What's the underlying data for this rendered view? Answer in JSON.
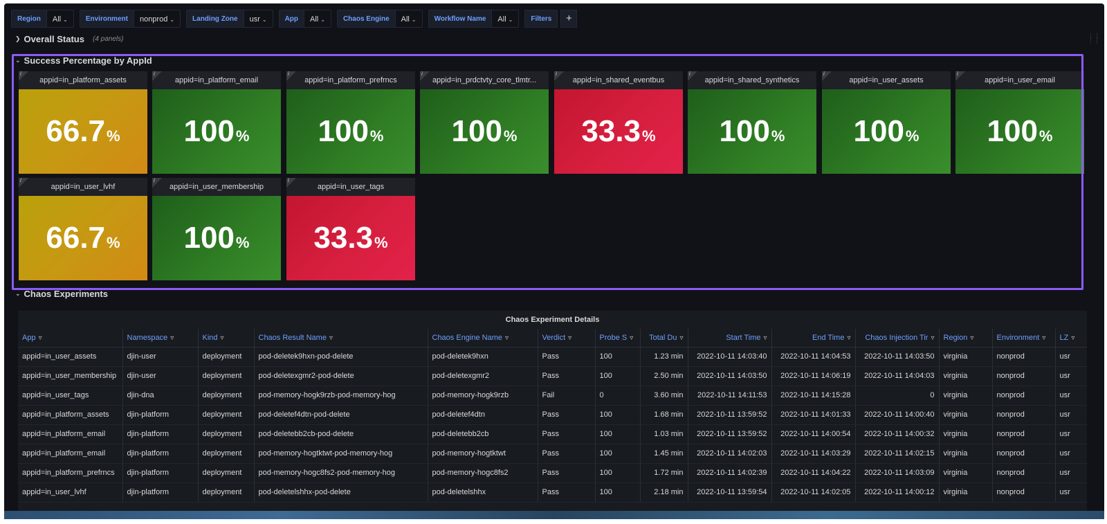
{
  "variables": [
    {
      "label": "Region",
      "value": "All"
    },
    {
      "label": "Environment",
      "value": "nonprod"
    },
    {
      "label": "Landing Zone",
      "value": "usr"
    },
    {
      "label": "App",
      "value": "All"
    },
    {
      "label": "Chaos Engine",
      "value": "All"
    },
    {
      "label": "Workflow Name",
      "value": "All"
    },
    {
      "label": "Filters",
      "value": ""
    }
  ],
  "add_filter_symbol": "+",
  "rows": {
    "overall": {
      "title": "Overall Status",
      "subtitle": "(4 panels)"
    },
    "success": {
      "title": "Success Percentage by AppId"
    },
    "chaos": {
      "title": "Chaos Experiments"
    }
  },
  "stat_panels": [
    {
      "title": "appid=in_platform_assets",
      "value": "66.7",
      "unit": "%",
      "status": "yellow"
    },
    {
      "title": "appid=in_platform_email",
      "value": "100",
      "unit": "%",
      "status": "green"
    },
    {
      "title": "appid=in_platform_prefrncs",
      "value": "100",
      "unit": "%",
      "status": "green"
    },
    {
      "title": "appid=in_prdctvty_core_tlmtr...",
      "value": "100",
      "unit": "%",
      "status": "green"
    },
    {
      "title": "appid=in_shared_eventbus",
      "value": "33.3",
      "unit": "%",
      "status": "red"
    },
    {
      "title": "appid=in_shared_synthetics",
      "value": "100",
      "unit": "%",
      "status": "green"
    },
    {
      "title": "appid=in_user_assets",
      "value": "100",
      "unit": "%",
      "status": "green"
    },
    {
      "title": "appid=in_user_email",
      "value": "100",
      "unit": "%",
      "status": "green"
    },
    {
      "title": "appid=in_user_lvhf",
      "value": "66.7",
      "unit": "%",
      "status": "yellow"
    },
    {
      "title": "appid=in_user_membership",
      "value": "100",
      "unit": "%",
      "status": "green"
    },
    {
      "title": "appid=in_user_tags",
      "value": "33.3",
      "unit": "%",
      "status": "red"
    }
  ],
  "table": {
    "title": "Chaos Experiment Details",
    "columns": [
      "App",
      "Namespace",
      "Kind",
      "Chaos Result Name",
      "Chaos Engine Name",
      "Verdict",
      "Probe S",
      "Total Du",
      "Start Time",
      "End Time",
      "Chaos Injection Tir",
      "Region",
      "Environment",
      "LZ"
    ],
    "rows": [
      [
        "appid=in_user_assets",
        "djin-user",
        "deployment",
        "pod-deletek9hxn-pod-delete",
        "pod-deletek9hxn",
        "Pass",
        "100",
        "1.23 min",
        "2022-10-11 14:03:40",
        "2022-10-11 14:04:53",
        "2022-10-11 14:03:50",
        "virginia",
        "nonprod",
        "usr"
      ],
      [
        "appid=in_user_membership",
        "djin-user",
        "deployment",
        "pod-deletexgmr2-pod-delete",
        "pod-deletexgmr2",
        "Pass",
        "100",
        "2.50 min",
        "2022-10-11 14:03:50",
        "2022-10-11 14:06:19",
        "2022-10-11 14:04:03",
        "virginia",
        "nonprod",
        "usr"
      ],
      [
        "appid=in_user_tags",
        "djin-dna",
        "deployment",
        "pod-memory-hogk9rzb-pod-memory-hog",
        "pod-memory-hogk9rzb",
        "Fail",
        "0",
        "3.60 min",
        "2022-10-11 14:11:53",
        "2022-10-11 14:15:28",
        "0",
        "virginia",
        "nonprod",
        "usr"
      ],
      [
        "appid=in_platform_assets",
        "djin-platform",
        "deployment",
        "pod-deletef4dtn-pod-delete",
        "pod-deletef4dtn",
        "Pass",
        "100",
        "1.68 min",
        "2022-10-11 13:59:52",
        "2022-10-11 14:01:33",
        "2022-10-11 14:00:40",
        "virginia",
        "nonprod",
        "usr"
      ],
      [
        "appid=in_platform_email",
        "djin-platform",
        "deployment",
        "pod-deletebb2cb-pod-delete",
        "pod-deletebb2cb",
        "Pass",
        "100",
        "1.03 min",
        "2022-10-11 13:59:52",
        "2022-10-11 14:00:54",
        "2022-10-11 14:00:32",
        "virginia",
        "nonprod",
        "usr"
      ],
      [
        "appid=in_platform_email",
        "djin-platform",
        "deployment",
        "pod-memory-hogtktwt-pod-memory-hog",
        "pod-memory-hogtktwt",
        "Pass",
        "100",
        "1.45 min",
        "2022-10-11 14:02:03",
        "2022-10-11 14:03:29",
        "2022-10-11 14:02:15",
        "virginia",
        "nonprod",
        "usr"
      ],
      [
        "appid=in_platform_prefrncs",
        "djin-platform",
        "deployment",
        "pod-memory-hogc8fs2-pod-memory-hog",
        "pod-memory-hogc8fs2",
        "Pass",
        "100",
        "1.72 min",
        "2022-10-11 14:02:39",
        "2022-10-11 14:04:22",
        "2022-10-11 14:03:09",
        "virginia",
        "nonprod",
        "usr"
      ],
      [
        "appid=in_user_lvhf",
        "djin-platform",
        "deployment",
        "pod-deletelshhx-pod-delete",
        "pod-deletelshhx",
        "Pass",
        "100",
        "2.18 min",
        "2022-10-11 13:59:54",
        "2022-10-11 14:02:05",
        "2022-10-11 14:00:12",
        "virginia",
        "nonprod",
        "usr"
      ]
    ]
  },
  "colors": {
    "green": "#2f7d24",
    "red": "#d71f3f",
    "yellow": "#c89713",
    "highlight": "#8b5cf6",
    "link": "#6e9fff"
  }
}
